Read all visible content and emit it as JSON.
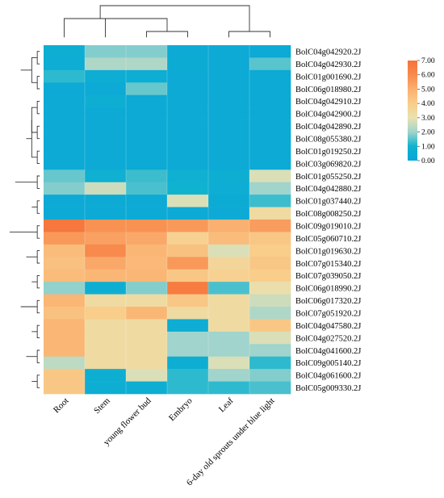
{
  "chart_data": {
    "type": "heatmap",
    "title": "",
    "xlabel": "",
    "ylabel": "",
    "columns": [
      "Root",
      "Stem",
      "young flower bud",
      "Embryo",
      "Leaf",
      "6-day old sprouts under blue light"
    ],
    "rows": [
      "BolC04g042920.2J",
      "BolC04g042930.2J",
      "BolC01g001690.2J",
      "BolC06g018980.2J",
      "BolC04g042910.2J",
      "BolC04g042900.2J",
      "BolC04g042890.2J",
      "BolC08g055380.2J",
      "BolC01g019250.2J",
      "BolC03g069820.2J",
      "BolC01g055250.2J",
      "BolC04g042880.2J",
      "BolC01g037440.2J",
      "BolC08g008250.2J",
      "BolC09g019010.2J",
      "BolC05g060710.2J",
      "BolC01g019630.2J",
      "BolC07g015340.2J",
      "BolC07g039050.2J",
      "BolC06g018990.2J",
      "BolC06g017320.2J",
      "BolC07g051920.2J",
      "BolC04g047580.2J",
      "BolC04g027520.2J",
      "BolC04g041600.2J",
      "BolC09g005140.2J",
      "BolC04g061600.2J",
      "BolC05g009330.2J"
    ],
    "values": [
      [
        0.6,
        1.8,
        1.8,
        0.3,
        0.3,
        0.3
      ],
      [
        0.5,
        2.2,
        2.2,
        0.4,
        0.3,
        1.5
      ],
      [
        1.2,
        0.5,
        0.5,
        0.3,
        0.3,
        0.3
      ],
      [
        0.3,
        0.3,
        1.6,
        0.3,
        0.3,
        0.3
      ],
      [
        0.3,
        0.6,
        0.3,
        0.3,
        0.3,
        0.3
      ],
      [
        0.3,
        0.3,
        0.3,
        0.3,
        0.3,
        0.3
      ],
      [
        0.3,
        0.3,
        0.3,
        0.3,
        0.3,
        0.3
      ],
      [
        0.3,
        0.3,
        0.3,
        0.3,
        0.3,
        0.3
      ],
      [
        0.3,
        0.3,
        0.3,
        0.3,
        0.3,
        0.3
      ],
      [
        0.3,
        0.3,
        0.3,
        0.3,
        0.3,
        0.3
      ],
      [
        1.6,
        0.8,
        1.3,
        0.8,
        0.6,
        2.8
      ],
      [
        1.8,
        2.6,
        1.4,
        1.0,
        0.5,
        2.0
      ],
      [
        0.3,
        0.3,
        0.3,
        2.8,
        0.4,
        1.3
      ],
      [
        0.3,
        0.3,
        0.3,
        0.3,
        0.3,
        3.4
      ],
      [
        6.8,
        5.8,
        5.8,
        5.6,
        5.0,
        5.5
      ],
      [
        5.6,
        5.4,
        5.2,
        3.8,
        4.6,
        4.2
      ],
      [
        4.6,
        6.0,
        4.8,
        4.4,
        2.8,
        4.0
      ],
      [
        4.4,
        5.2,
        4.7,
        5.6,
        3.6,
        4.2
      ],
      [
        4.6,
        4.8,
        4.8,
        4.2,
        3.8,
        4.0
      ],
      [
        1.9,
        0.6,
        1.8,
        6.6,
        1.4,
        3.2
      ],
      [
        4.8,
        3.4,
        3.4,
        4.2,
        3.4,
        2.6
      ],
      [
        4.4,
        4.0,
        4.8,
        3.4,
        3.4,
        2.2
      ],
      [
        4.8,
        3.4,
        3.4,
        0.5,
        3.4,
        4.2
      ],
      [
        4.8,
        3.4,
        3.4,
        2.0,
        2.0,
        2.8
      ],
      [
        4.8,
        3.4,
        3.4,
        2.0,
        2.0,
        2.0
      ],
      [
        2.4,
        3.4,
        3.4,
        0.6,
        2.8,
        1.2
      ],
      [
        4.2,
        0.6,
        2.8,
        1.2,
        2.0,
        1.8
      ],
      [
        4.2,
        0.6,
        0.6,
        1.2,
        1.2,
        1.4
      ]
    ],
    "colorbar": {
      "min": 0,
      "max": 7,
      "ticks": [
        "0.00",
        "1.00",
        "2.00",
        "3.00",
        "4.00",
        "5.00",
        "6.00",
        "7.00"
      ],
      "colors": [
        "#0aa6d8",
        "#10b3cf",
        "#a0d4cc",
        "#e9e2b2",
        "#f9cd8a",
        "#fab070",
        "#f78a4c",
        "#f6733a"
      ]
    },
    "column_dendrogram": [
      [
        2,
        3,
        0
      ],
      [
        1,
        6,
        1
      ],
      [
        4,
        5,
        0
      ],
      [
        0,
        7,
        1
      ],
      [
        8,
        9,
        2
      ]
    ],
    "row_dendrogram": [
      [
        0,
        1,
        0
      ],
      [
        2,
        3,
        0
      ],
      [
        28,
        29,
        1
      ],
      [
        4,
        5,
        0
      ],
      [
        6,
        7,
        0
      ],
      [
        8,
        9,
        0
      ],
      [
        31,
        32,
        1
      ],
      [
        33,
        34,
        1
      ],
      [
        35,
        36,
        2
      ],
      [
        30,
        37,
        3
      ],
      [
        10,
        11,
        0
      ],
      [
        12,
        13,
        0
      ],
      [
        39,
        40,
        1
      ],
      [
        38,
        41,
        4
      ],
      [
        14,
        15,
        0
      ],
      [
        16,
        17,
        0
      ],
      [
        18,
        19,
        0
      ],
      [
        44,
        45,
        1
      ],
      [
        43,
        46,
        2
      ],
      [
        20,
        21,
        0
      ],
      [
        22,
        23,
        0
      ],
      [
        48,
        49,
        1
      ],
      [
        24,
        25,
        0
      ],
      [
        26,
        27,
        0
      ],
      [
        51,
        52,
        1
      ],
      [
        50,
        53,
        2
      ],
      [
        47,
        54,
        3
      ],
      [
        42,
        55,
        5
      ]
    ]
  }
}
